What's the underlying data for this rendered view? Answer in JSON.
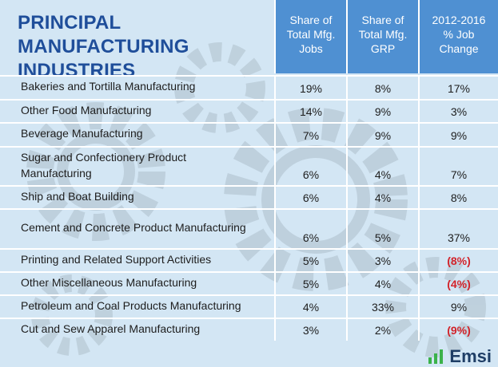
{
  "header": {
    "title": "PRINCIPAL MANUFACTURING INDUSTRIES",
    "columns": [
      "Share of\nTotal Mfg.\nJobs",
      "Share of\nTotal Mfg.\nGRP",
      "2012-2016\n% Job\nChange"
    ]
  },
  "table": {
    "rows": [
      [
        "Bakeries and Tortilla Manufacturing",
        "19%",
        "8%",
        "17%"
      ],
      [
        "Other Food Manufacturing",
        "14%",
        "9%",
        "3%"
      ],
      [
        "Beverage Manufacturing",
        "7%",
        "9%",
        "9%"
      ],
      [
        "Sugar and Confectionery Product Manufacturing",
        "6%",
        "4%",
        "7%"
      ],
      [
        "Ship and Boat Building",
        "6%",
        "4%",
        "8%"
      ],
      [
        "Cement and Concrete Product Manufacturing",
        "6%",
        "5%",
        "37%"
      ],
      [
        "Printing and Related Support Activities",
        "5%",
        "3%",
        "(8%)"
      ],
      [
        "Other Miscellaneous Manufacturing",
        "5%",
        "4%",
        "(4%)"
      ],
      [
        "Petroleum and Coal Products Manufacturing",
        "4%",
        "33%",
        "9%"
      ],
      [
        "Cut and Sew Apparel Manufacturing",
        "3%",
        "2%",
        "(9%)"
      ]
    ]
  },
  "footer": {
    "logo": "Emsi"
  }
}
